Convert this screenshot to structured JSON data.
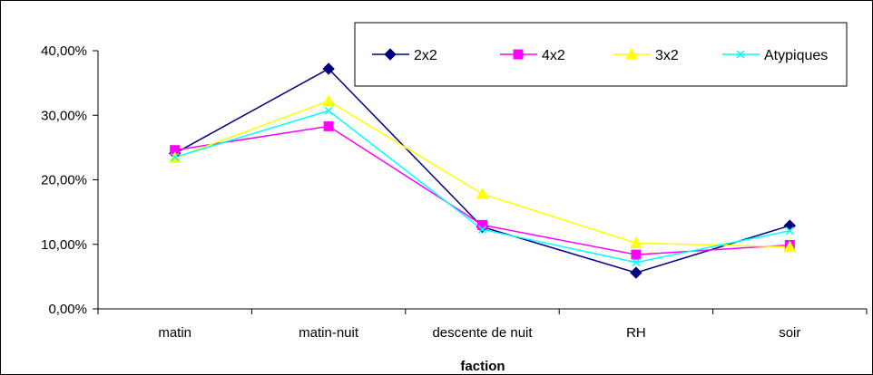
{
  "chart_data": {
    "type": "line",
    "xlabel": "faction",
    "ylabel": "",
    "ylim": [
      0,
      0.4
    ],
    "y_ticks": [
      "0,00%",
      "10,00%",
      "20,00%",
      "30,00%",
      "40,00%"
    ],
    "grid": false,
    "legend_position": "top-right",
    "categories": [
      "matin",
      "matin-nuit",
      "descente de nuit",
      "RH",
      "soir"
    ],
    "series": [
      {
        "name": "2x2",
        "color": "#000080",
        "marker": "diamond",
        "values": [
          0.241,
          0.372,
          0.127,
          0.056,
          0.129
        ]
      },
      {
        "name": "4x2",
        "color": "#FF00FF",
        "marker": "square",
        "values": [
          0.246,
          0.283,
          0.13,
          0.084,
          0.099
        ]
      },
      {
        "name": "3x2",
        "color": "#FFFF00",
        "marker": "triangle",
        "values": [
          0.234,
          0.322,
          0.178,
          0.102,
          0.096
        ]
      },
      {
        "name": "Atypiques",
        "color": "#00FFFF",
        "marker": "x",
        "values": [
          0.235,
          0.307,
          0.123,
          0.072,
          0.121
        ]
      }
    ]
  }
}
